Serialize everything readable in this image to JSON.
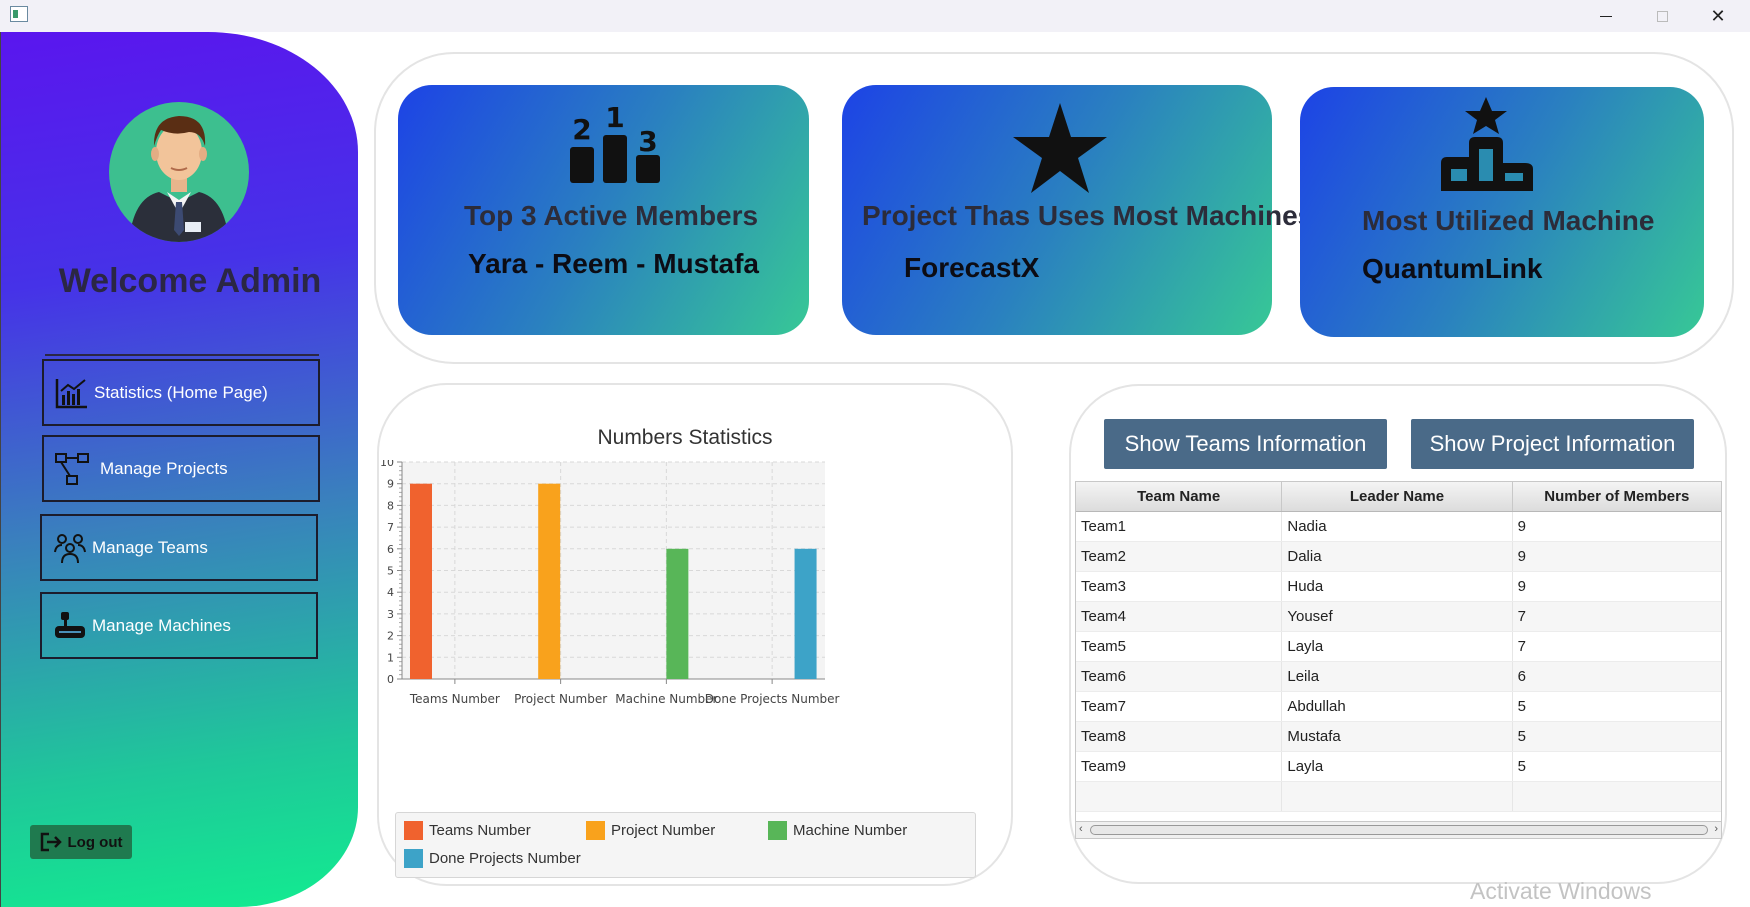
{
  "window": {
    "minimize_icon": "minimize-icon",
    "maximize_icon": "maximize-icon",
    "close_icon": "close-icon",
    "close_glyph": "✕"
  },
  "sidebar": {
    "welcome": "Welcome Admin",
    "nav": [
      {
        "label": "Statistics (Home Page)",
        "icon": "chart-icon"
      },
      {
        "label": "Manage Projects",
        "icon": "project-diagram-icon"
      },
      {
        "label": "Manage Teams",
        "icon": "team-icon"
      },
      {
        "label": "Manage Machines",
        "icon": "machine-icon"
      }
    ],
    "logout": "Log out"
  },
  "cards": [
    {
      "title": "Top 3 Active Members",
      "value": "Yara  -  Reem  -  Mustafa",
      "icon": "podium-icon",
      "digits": [
        "2",
        "1",
        "3"
      ]
    },
    {
      "title": "Project Thas Uses Most Machines",
      "value": "ForecastX",
      "icon": "star-icon"
    },
    {
      "title": "Most Utilized Machine",
      "value": "QuantumLink",
      "icon": "podium-star-icon"
    }
  ],
  "chart_data": {
    "type": "bar",
    "title": "Numbers Statistics",
    "categories": [
      "Teams Number",
      "Project Number",
      "Machine Number",
      "Done Projects Number"
    ],
    "series": [
      {
        "name": "Teams Number",
        "values": [
          9,
          null,
          null,
          null
        ],
        "color": "#f0622e"
      },
      {
        "name": "Project Number",
        "values": [
          null,
          9,
          null,
          null
        ],
        "color": "#f9a21c"
      },
      {
        "name": "Machine Number",
        "values": [
          null,
          null,
          6,
          null
        ],
        "color": "#58b658"
      },
      {
        "name": "Done Projects Number",
        "values": [
          null,
          null,
          null,
          6
        ],
        "color": "#3da3c8"
      }
    ],
    "ylim": [
      0,
      10
    ],
    "yticks": [
      "0",
      "1",
      "2",
      "3",
      "4",
      "5",
      "6",
      "7",
      "8",
      "9",
      "10"
    ],
    "grid": true,
    "legend_position": "bottom"
  },
  "table": {
    "buttons": {
      "teams": "Show Teams Information",
      "projects": "Show Project Information"
    },
    "columns": [
      "Team Name",
      "Leader Name",
      "Number of Members"
    ],
    "rows": [
      [
        "Team1",
        "Nadia",
        "9"
      ],
      [
        "Team2",
        "Dalia",
        "9"
      ],
      [
        "Team3",
        "Huda",
        "9"
      ],
      [
        "Team4",
        "Yousef",
        "7"
      ],
      [
        "Team5",
        "Layla",
        "7"
      ],
      [
        "Team6",
        "Leila",
        "6"
      ],
      [
        "Team7",
        "Abdullah",
        "5"
      ],
      [
        "Team8",
        "Mustafa",
        "5"
      ],
      [
        "Team9",
        "Layla",
        "5"
      ]
    ]
  },
  "watermark": "Activate Windows"
}
